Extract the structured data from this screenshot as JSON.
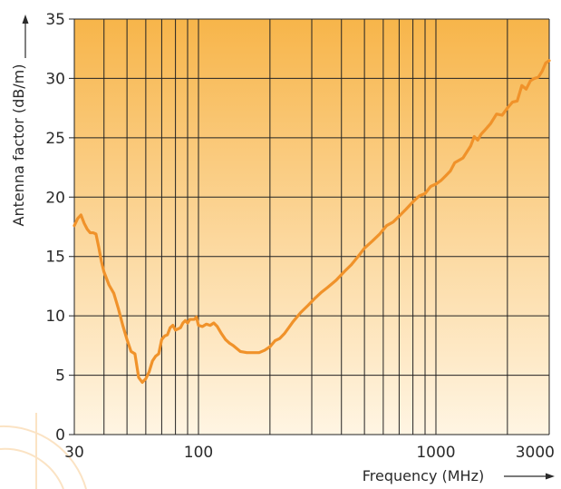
{
  "chart_data": {
    "type": "line",
    "xlabel": "Frequency (MHz)",
    "ylabel": "Antenna factor (dB/m)",
    "x_scale": "log",
    "xlim": [
      30,
      3000
    ],
    "ylim": [
      0,
      35
    ],
    "x_ticks": [
      30,
      100,
      1000,
      3000
    ],
    "y_ticks": [
      0,
      5,
      10,
      15,
      20,
      25,
      30,
      35
    ],
    "x_grid": [
      30,
      40,
      50,
      60,
      70,
      80,
      90,
      100,
      200,
      300,
      400,
      500,
      600,
      700,
      800,
      900,
      1000,
      2000,
      3000
    ],
    "y_grid": [
      0,
      5,
      10,
      15,
      20,
      25,
      30,
      35
    ],
    "grid": true,
    "colors": {
      "line": "#f0922a",
      "background_top": "#f7b54a",
      "background_bottom": "#fff5e3",
      "grid": "#222222"
    },
    "series": [
      {
        "x": [
          30,
          31,
          32,
          33,
          34,
          35,
          36,
          37,
          38,
          39,
          40,
          42,
          44,
          46,
          48,
          50,
          52,
          54,
          56,
          58,
          60,
          62,
          64,
          66,
          68,
          70,
          72,
          74,
          76,
          78,
          80,
          82,
          84,
          86,
          88,
          90,
          92,
          94,
          96,
          98,
          100,
          104,
          108,
          112,
          116,
          120,
          125,
          130,
          135,
          140,
          150,
          160,
          170,
          180,
          190,
          200,
          210,
          220,
          230,
          240,
          250,
          270,
          290,
          310,
          330,
          350,
          380,
          410,
          440,
          470,
          500,
          540,
          580,
          620,
          660,
          700,
          750,
          800,
          850,
          900,
          950,
          1000,
          1050,
          1100,
          1150,
          1200,
          1300,
          1400,
          1450,
          1500,
          1550,
          1600,
          1700,
          1800,
          1900,
          2000,
          2100,
          2200,
          2300,
          2400,
          2500,
          2600,
          2700,
          2800,
          2900,
          3000
        ],
        "values": [
          17.6,
          18.2,
          18.5,
          17.8,
          17.3,
          17.0,
          17.0,
          16.9,
          15.8,
          14.6,
          13.7,
          12.6,
          11.9,
          10.6,
          9.2,
          8.0,
          7.0,
          6.8,
          4.8,
          4.4,
          4.7,
          5.3,
          6.2,
          6.6,
          6.8,
          8.0,
          8.3,
          8.4,
          9.0,
          9.2,
          8.8,
          8.9,
          9.0,
          9.4,
          9.6,
          9.4,
          9.7,
          9.7,
          9.7,
          9.9,
          9.2,
          9.1,
          9.3,
          9.2,
          9.4,
          9.1,
          8.5,
          8.0,
          7.7,
          7.5,
          7.0,
          6.9,
          6.9,
          6.9,
          7.1,
          7.4,
          7.9,
          8.1,
          8.5,
          9.0,
          9.5,
          10.3,
          10.9,
          11.5,
          12.0,
          12.4,
          13.0,
          13.7,
          14.3,
          15.0,
          15.7,
          16.3,
          16.9,
          17.6,
          17.9,
          18.4,
          19.0,
          19.6,
          20.1,
          20.3,
          20.9,
          21.1,
          21.4,
          21.8,
          22.2,
          22.9,
          23.3,
          24.3,
          25.1,
          24.8,
          25.3,
          25.6,
          26.2,
          27.0,
          26.9,
          27.5,
          28.0,
          28.1,
          29.4,
          29.1,
          29.8,
          30.0,
          30.1,
          30.6,
          31.3,
          31.5
        ]
      }
    ]
  }
}
